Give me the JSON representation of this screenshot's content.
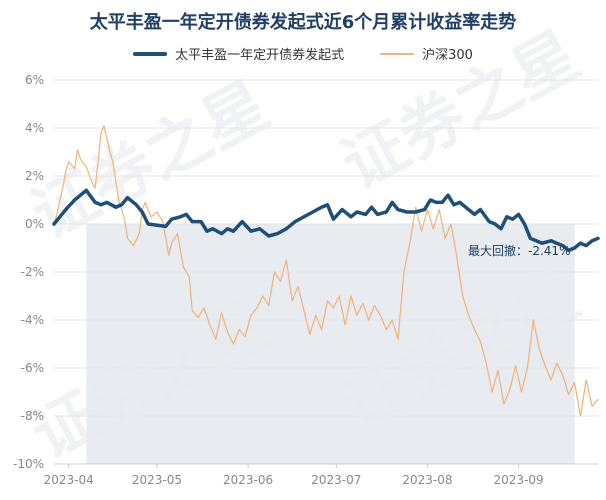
{
  "chart_data": {
    "type": "line",
    "title": "太平丰盈一年定开债券发起式近6个月累计收益率走势",
    "ylim": [
      -10,
      6
    ],
    "yticks": [
      6,
      4,
      2,
      0,
      -2,
      -4,
      -6,
      -8,
      -10
    ],
    "ytick_labels": [
      "6%",
      "4%",
      "2%",
      "0%",
      "-2%",
      "-4%",
      "-6%",
      "-8%",
      "-10%"
    ],
    "xlim": [
      "2023-03-27",
      "2023-09-28"
    ],
    "xticks": [
      "2023-04-01",
      "2023-05-01",
      "2023-06-01",
      "2023-07-01",
      "2023-08-01",
      "2023-09-01"
    ],
    "xtick_labels": [
      "2023-04",
      "2023-05",
      "2023-06",
      "2023-07",
      "2023-08",
      "2023-09"
    ],
    "grid": "horizontal",
    "legend_position": "top",
    "max_drawdown": {
      "label": "最大回撤：-2.41%",
      "start": "2023-04-07",
      "end": "2023-09-20",
      "color": "#e5e9ee"
    },
    "series": [
      {
        "name": "太平丰盈一年定开债券发起式",
        "color": "#1f4e79",
        "points": [
          [
            "2023-03-27",
            0.0
          ],
          [
            "2023-03-29",
            0.3
          ],
          [
            "2023-03-31",
            0.6
          ],
          [
            "2023-04-03",
            1.0
          ],
          [
            "2023-04-05",
            1.2
          ],
          [
            "2023-04-07",
            1.4
          ],
          [
            "2023-04-10",
            0.9
          ],
          [
            "2023-04-12",
            0.8
          ],
          [
            "2023-04-14",
            0.9
          ],
          [
            "2023-04-17",
            0.7
          ],
          [
            "2023-04-19",
            0.8
          ],
          [
            "2023-04-21",
            1.1
          ],
          [
            "2023-04-24",
            0.8
          ],
          [
            "2023-04-26",
            0.5
          ],
          [
            "2023-04-28",
            0.0
          ],
          [
            "2023-05-04",
            -0.1
          ],
          [
            "2023-05-06",
            0.2
          ],
          [
            "2023-05-09",
            0.3
          ],
          [
            "2023-05-11",
            0.4
          ],
          [
            "2023-05-13",
            0.1
          ],
          [
            "2023-05-16",
            0.1
          ],
          [
            "2023-05-18",
            -0.3
          ],
          [
            "2023-05-20",
            -0.2
          ],
          [
            "2023-05-23",
            -0.4
          ],
          [
            "2023-05-25",
            -0.2
          ],
          [
            "2023-05-27",
            -0.3
          ],
          [
            "2023-05-30",
            0.1
          ],
          [
            "2023-06-02",
            -0.3
          ],
          [
            "2023-06-05",
            -0.2
          ],
          [
            "2023-06-08",
            -0.5
          ],
          [
            "2023-06-11",
            -0.4
          ],
          [
            "2023-06-14",
            -0.2
          ],
          [
            "2023-06-17",
            0.1
          ],
          [
            "2023-06-20",
            0.3
          ],
          [
            "2023-06-23",
            0.5
          ],
          [
            "2023-06-26",
            0.7
          ],
          [
            "2023-06-28",
            0.8
          ],
          [
            "2023-06-30",
            0.2
          ],
          [
            "2023-07-03",
            0.6
          ],
          [
            "2023-07-06",
            0.3
          ],
          [
            "2023-07-08",
            0.5
          ],
          [
            "2023-07-11",
            0.4
          ],
          [
            "2023-07-13",
            0.7
          ],
          [
            "2023-07-15",
            0.4
          ],
          [
            "2023-07-18",
            0.5
          ],
          [
            "2023-07-20",
            0.9
          ],
          [
            "2023-07-22",
            0.6
          ],
          [
            "2023-07-25",
            0.5
          ],
          [
            "2023-07-28",
            0.5
          ],
          [
            "2023-07-31",
            0.6
          ],
          [
            "2023-08-02",
            1.0
          ],
          [
            "2023-08-04",
            0.9
          ],
          [
            "2023-08-06",
            0.9
          ],
          [
            "2023-08-08",
            1.2
          ],
          [
            "2023-08-10",
            0.8
          ],
          [
            "2023-08-12",
            0.9
          ],
          [
            "2023-08-15",
            0.6
          ],
          [
            "2023-08-17",
            0.4
          ],
          [
            "2023-08-19",
            0.6
          ],
          [
            "2023-08-22",
            0.1
          ],
          [
            "2023-08-24",
            0.0
          ],
          [
            "2023-08-26",
            -0.2
          ],
          [
            "2023-08-28",
            0.3
          ],
          [
            "2023-08-30",
            0.2
          ],
          [
            "2023-09-01",
            0.4
          ],
          [
            "2023-09-03",
            0.0
          ],
          [
            "2023-09-05",
            -0.6
          ],
          [
            "2023-09-07",
            -0.7
          ],
          [
            "2023-09-09",
            -0.8
          ],
          [
            "2023-09-12",
            -0.7
          ],
          [
            "2023-09-14",
            -0.8
          ],
          [
            "2023-09-16",
            -0.9
          ],
          [
            "2023-09-18",
            -1.1
          ],
          [
            "2023-09-20",
            -1.0
          ],
          [
            "2023-09-22",
            -0.8
          ],
          [
            "2023-09-24",
            -0.9
          ],
          [
            "2023-09-26",
            -0.7
          ],
          [
            "2023-09-28",
            -0.6
          ]
        ]
      },
      {
        "name": "沪深300",
        "color": "#f0b27a",
        "points": [
          [
            "2023-03-27",
            0.0
          ],
          [
            "2023-03-28",
            0.4
          ],
          [
            "2023-03-29",
            1.0
          ],
          [
            "2023-03-30",
            1.5
          ],
          [
            "2023-03-31",
            2.2
          ],
          [
            "2023-04-01",
            2.6
          ],
          [
            "2023-04-03",
            2.3
          ],
          [
            "2023-04-04",
            3.1
          ],
          [
            "2023-04-05",
            2.7
          ],
          [
            "2023-04-06",
            2.5
          ],
          [
            "2023-04-07",
            2.4
          ],
          [
            "2023-04-09",
            1.7
          ],
          [
            "2023-04-10",
            1.5
          ],
          [
            "2023-04-11",
            2.6
          ],
          [
            "2023-04-12",
            3.8
          ],
          [
            "2023-04-13",
            4.1
          ],
          [
            "2023-04-15",
            3.0
          ],
          [
            "2023-04-16",
            2.6
          ],
          [
            "2023-04-18",
            1.0
          ],
          [
            "2023-04-20",
            0.2
          ],
          [
            "2023-04-21",
            -0.6
          ],
          [
            "2023-04-23",
            -0.9
          ],
          [
            "2023-04-25",
            -0.4
          ],
          [
            "2023-04-26",
            0.6
          ],
          [
            "2023-04-27",
            0.9
          ],
          [
            "2023-04-29",
            0.3
          ],
          [
            "2023-05-01",
            0.5
          ],
          [
            "2023-05-03",
            0.1
          ],
          [
            "2023-05-05",
            -1.3
          ],
          [
            "2023-05-06",
            -0.8
          ],
          [
            "2023-05-08",
            -0.4
          ],
          [
            "2023-05-10",
            -1.8
          ],
          [
            "2023-05-12",
            -2.2
          ],
          [
            "2023-05-13",
            -3.6
          ],
          [
            "2023-05-15",
            -3.9
          ],
          [
            "2023-05-17",
            -3.5
          ],
          [
            "2023-05-19",
            -4.2
          ],
          [
            "2023-05-21",
            -4.8
          ],
          [
            "2023-05-23",
            -3.7
          ],
          [
            "2023-05-25",
            -4.5
          ],
          [
            "2023-05-27",
            -5.0
          ],
          [
            "2023-05-29",
            -4.4
          ],
          [
            "2023-05-31",
            -4.7
          ],
          [
            "2023-06-02",
            -3.8
          ],
          [
            "2023-06-04",
            -3.5
          ],
          [
            "2023-06-06",
            -3.0
          ],
          [
            "2023-06-08",
            -3.4
          ],
          [
            "2023-06-10",
            -2.0
          ],
          [
            "2023-06-12",
            -2.4
          ],
          [
            "2023-06-14",
            -1.5
          ],
          [
            "2023-06-16",
            -3.2
          ],
          [
            "2023-06-18",
            -2.6
          ],
          [
            "2023-06-20",
            -3.6
          ],
          [
            "2023-06-22",
            -4.6
          ],
          [
            "2023-06-24",
            -3.8
          ],
          [
            "2023-06-26",
            -4.4
          ],
          [
            "2023-06-28",
            -3.2
          ],
          [
            "2023-06-30",
            -3.5
          ],
          [
            "2023-07-02",
            -3.0
          ],
          [
            "2023-07-04",
            -4.2
          ],
          [
            "2023-07-06",
            -3.0
          ],
          [
            "2023-07-08",
            -3.8
          ],
          [
            "2023-07-10",
            -3.3
          ],
          [
            "2023-07-12",
            -4.0
          ],
          [
            "2023-07-14",
            -3.4
          ],
          [
            "2023-07-16",
            -3.8
          ],
          [
            "2023-07-18",
            -4.4
          ],
          [
            "2023-07-20",
            -4.0
          ],
          [
            "2023-07-22",
            -4.8
          ],
          [
            "2023-07-24",
            -2.0
          ],
          [
            "2023-07-26",
            -0.8
          ],
          [
            "2023-07-28",
            0.7
          ],
          [
            "2023-07-30",
            -0.3
          ],
          [
            "2023-08-01",
            0.6
          ],
          [
            "2023-08-03",
            -0.2
          ],
          [
            "2023-08-05",
            0.6
          ],
          [
            "2023-08-07",
            -0.6
          ],
          [
            "2023-08-09",
            0.0
          ],
          [
            "2023-08-11",
            -1.4
          ],
          [
            "2023-08-13",
            -3.0
          ],
          [
            "2023-08-15",
            -3.8
          ],
          [
            "2023-08-17",
            -4.4
          ],
          [
            "2023-08-19",
            -4.9
          ],
          [
            "2023-08-21",
            -5.8
          ],
          [
            "2023-08-23",
            -7.0
          ],
          [
            "2023-08-25",
            -6.1
          ],
          [
            "2023-08-27",
            -7.5
          ],
          [
            "2023-08-29",
            -6.9
          ],
          [
            "2023-08-31",
            -5.9
          ],
          [
            "2023-09-02",
            -7.0
          ],
          [
            "2023-09-04",
            -6.0
          ],
          [
            "2023-09-06",
            -4.0
          ],
          [
            "2023-09-08",
            -5.2
          ],
          [
            "2023-09-10",
            -5.9
          ],
          [
            "2023-09-12",
            -6.5
          ],
          [
            "2023-09-14",
            -5.8
          ],
          [
            "2023-09-16",
            -6.3
          ],
          [
            "2023-09-18",
            -7.1
          ],
          [
            "2023-09-20",
            -6.6
          ],
          [
            "2023-09-22",
            -8.0
          ],
          [
            "2023-09-24",
            -6.5
          ],
          [
            "2023-09-26",
            -7.6
          ],
          [
            "2023-09-28",
            -7.3
          ]
        ]
      }
    ]
  },
  "watermark_text": "证券之星",
  "colors": {
    "title": "#1f3f66",
    "grid": "#e6e6e6",
    "tick": "#888888"
  }
}
